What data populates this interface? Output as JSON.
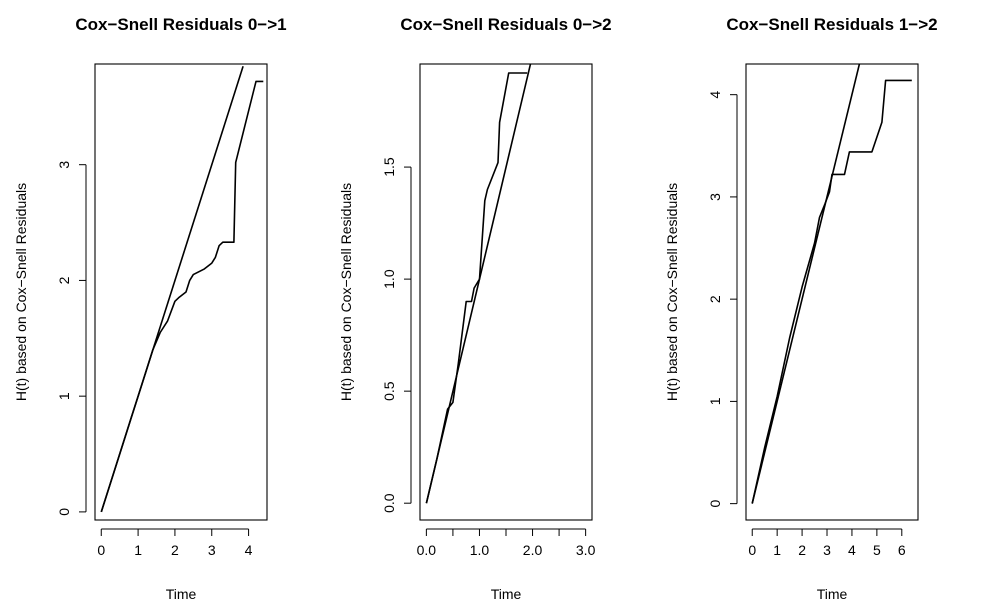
{
  "chart_data": [
    {
      "type": "line",
      "title": "Cox−Snell Residuals 0−>1",
      "xlabel": "Time",
      "ylabel": "H(t) based on Cox−Snell Residuals",
      "xlim": [
        -0.17,
        4.5
      ],
      "ylim": [
        -0.07,
        3.87
      ],
      "xticks": [
        0,
        1,
        2,
        3,
        4
      ],
      "xtick_labels": [
        "0",
        "1",
        "2",
        "3",
        "4"
      ],
      "yticks": [
        0,
        1,
        2,
        3
      ],
      "ytick_labels": [
        "0",
        "1",
        "2",
        "3"
      ],
      "grid": false,
      "series": [
        {
          "x": [
            0,
            0.5,
            0.8,
            1.0,
            1.2,
            1.4,
            1.6,
            1.8,
            2.0,
            2.1,
            2.3,
            2.4,
            2.5,
            2.8,
            3.0,
            3.1,
            3.2,
            3.3,
            3.6,
            3.65,
            4.2,
            4.4
          ],
          "y": [
            0,
            0.5,
            0.8,
            1.0,
            1.2,
            1.4,
            1.55,
            1.65,
            1.82,
            1.85,
            1.9,
            2.0,
            2.05,
            2.1,
            2.15,
            2.2,
            2.3,
            2.33,
            2.33,
            3.02,
            3.72,
            3.72
          ]
        },
        {
          "x": [
            0,
            3.85
          ],
          "y": [
            0,
            3.85
          ]
        }
      ]
    },
    {
      "type": "line",
      "title": "Cox−Snell Residuals 0−>2",
      "xlabel": "Time",
      "ylabel": "H(t) based on Cox−Snell Residuals",
      "xlim": [
        -0.12,
        3.12
      ],
      "ylim": [
        -0.075,
        1.96
      ],
      "xticks": [
        0,
        0.5,
        1,
        1.5,
        2,
        2.5,
        3
      ],
      "xtick_labels": [
        "0.0",
        "",
        "1.0",
        "",
        "2.0",
        "",
        "3.0"
      ],
      "yticks": [
        0,
        0.5,
        1,
        1.5
      ],
      "ytick_labels": [
        "0.0",
        "0.5",
        "1.0",
        "1.5"
      ],
      "grid": false,
      "series": [
        {
          "x": [
            0,
            0.2,
            0.4,
            0.5,
            0.6,
            0.75,
            0.85,
            0.9,
            1.0,
            1.1,
            1.15,
            1.35,
            1.38,
            1.55,
            1.9
          ],
          "y": [
            0,
            0.2,
            0.42,
            0.45,
            0.62,
            0.9,
            0.9,
            0.96,
            1.0,
            1.35,
            1.4,
            1.52,
            1.7,
            1.92,
            1.92
          ]
        },
        {
          "x": [
            0,
            1.97
          ],
          "y": [
            0,
            1.97
          ]
        }
      ]
    },
    {
      "type": "line",
      "title": "Cox−Snell Residuals 1−>2",
      "xlabel": "Time",
      "ylabel": "H(t) based on Cox−Snell Residuals",
      "xlim": [
        -0.25,
        6.65
      ],
      "ylim": [
        -0.16,
        4.3
      ],
      "xticks": [
        0,
        1,
        2,
        3,
        4,
        5,
        6
      ],
      "xtick_labels": [
        "0",
        "1",
        "2",
        "3",
        "4",
        "5",
        "6"
      ],
      "yticks": [
        0,
        1,
        2,
        3,
        4
      ],
      "ytick_labels": [
        "0",
        "1",
        "2",
        "3",
        "4"
      ],
      "grid": false,
      "series": [
        {
          "x": [
            0,
            0.5,
            1.0,
            1.5,
            2.0,
            2.5,
            2.7,
            2.9,
            3.1,
            3.2,
            3.4,
            3.7,
            3.9,
            4.8,
            5.2,
            5.35,
            5.5,
            6.4
          ],
          "y": [
            0,
            0.55,
            1.05,
            1.62,
            2.12,
            2.55,
            2.8,
            2.92,
            3.05,
            3.22,
            3.22,
            3.22,
            3.44,
            3.44,
            3.73,
            4.14,
            4.14,
            4.14
          ]
        },
        {
          "x": [
            0,
            4.3
          ],
          "y": [
            0,
            4.3
          ]
        }
      ]
    }
  ]
}
